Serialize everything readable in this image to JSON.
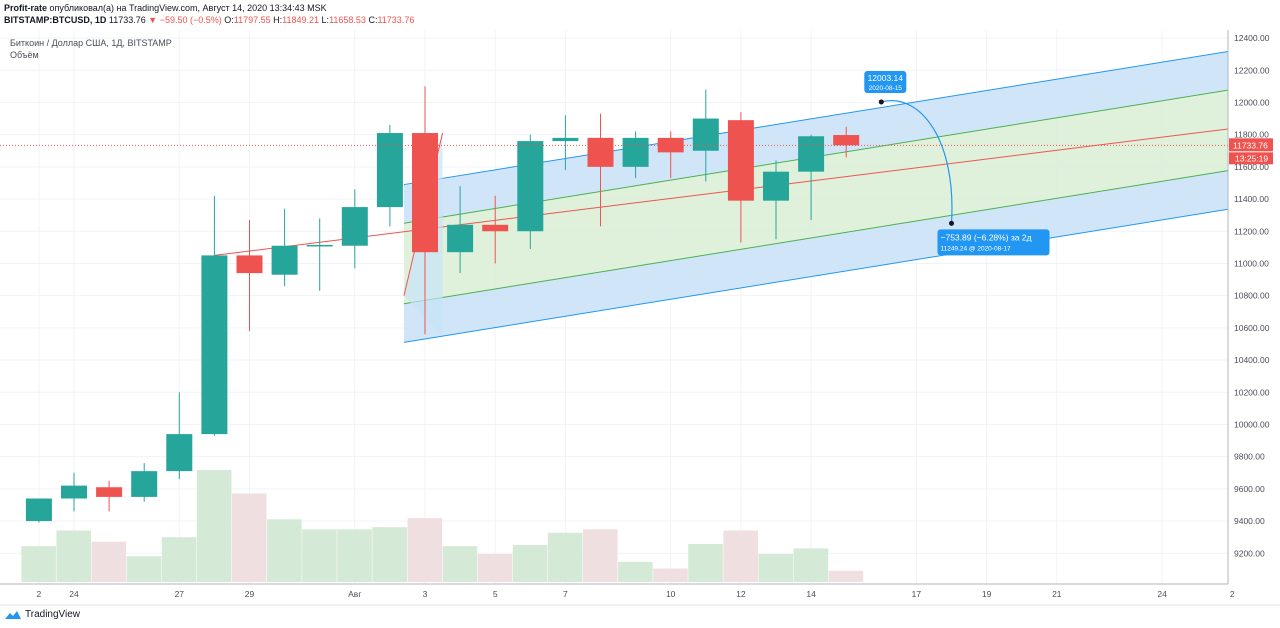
{
  "header": {
    "author": "Profit-rate",
    "published": "опубликовал(а) на TradingView.com, Август 14, 2020 13:34:43 MSK",
    "symbol": "BITSTAMP:BTCUSD, 1D",
    "last": "11733.76",
    "change": "−59.50 (−0.5%)",
    "o_label": "O:",
    "o_val": "11797.55",
    "h_label": "H:",
    "h_val": "11849.21",
    "l_label": "L:",
    "l_val": "11658.53",
    "c_label": "C:",
    "c_val": "11733.76"
  },
  "legend": {
    "series_title": "Биткоин / Доллар США, 1Д, BITSTAMP",
    "volume_title": "Объём"
  },
  "footer": {
    "brand": "TradingView"
  },
  "colors": {
    "up": "#26a69a",
    "down": "#ef5350",
    "vol_up": "#d5ead6",
    "vol_down": "#f0dfe0",
    "channel_outer": "#c8e2f7",
    "channel_inner": "#d9efd5",
    "channel_outer_line": "#2196f3",
    "channel_inner_line": "#4caf50",
    "median_line": "#ef5350",
    "callout": "#2196f3"
  },
  "chart_data": {
    "type": "candlestick",
    "ylim": [
      9000,
      12450
    ],
    "y_ticks": [
      "12400.00",
      "12200.00",
      "12000.00",
      "11800.00",
      "11600.00",
      "11400.00",
      "11200.00",
      "11000.00",
      "10800.00",
      "10600.00",
      "10400.00",
      "10200.00",
      "10000.00",
      "9800.00",
      "9600.00",
      "9400.00",
      "9200.00"
    ],
    "x_ticks": [
      {
        "day": -1,
        "label": "2"
      },
      {
        "day": 0,
        "label": "24"
      },
      {
        "day": 3,
        "label": "27"
      },
      {
        "day": 5,
        "label": "29"
      },
      {
        "day": 8,
        "label": "Авг"
      },
      {
        "day": 10,
        "label": "3"
      },
      {
        "day": 12,
        "label": "5"
      },
      {
        "day": 14,
        "label": "7"
      },
      {
        "day": 17,
        "label": "10"
      },
      {
        "day": 19,
        "label": "12"
      },
      {
        "day": 21,
        "label": "14"
      },
      {
        "day": 24,
        "label": "17"
      },
      {
        "day": 26,
        "label": "19"
      },
      {
        "day": 28,
        "label": "21"
      },
      {
        "day": 31,
        "label": "24"
      },
      {
        "day": 33,
        "label": "2"
      }
    ],
    "candles": [
      {
        "day": -1,
        "o": 9400,
        "h": 9540,
        "l": 9390,
        "c": 9540
      },
      {
        "day": 0,
        "o": 9540,
        "h": 9700,
        "l": 9460,
        "c": 9620
      },
      {
        "day": 1,
        "o": 9610,
        "h": 9650,
        "l": 9460,
        "c": 9550
      },
      {
        "day": 2,
        "o": 9550,
        "h": 9760,
        "l": 9520,
        "c": 9710
      },
      {
        "day": 3,
        "o": 9710,
        "h": 10200,
        "l": 9660,
        "c": 9940
      },
      {
        "day": 4,
        "o": 9940,
        "h": 11420,
        "l": 9930,
        "c": 11050
      },
      {
        "day": 5,
        "o": 11050,
        "h": 11270,
        "l": 10580,
        "c": 10940
      },
      {
        "day": 6,
        "o": 10930,
        "h": 11340,
        "l": 10860,
        "c": 11110
      },
      {
        "day": 7,
        "o": 11110,
        "h": 11280,
        "l": 10830,
        "c": 11115
      },
      {
        "day": 8,
        "o": 11110,
        "h": 11460,
        "l": 10970,
        "c": 11350
      },
      {
        "day": 9,
        "o": 11350,
        "h": 11860,
        "l": 11230,
        "c": 11810
      },
      {
        "day": 10,
        "o": 11810,
        "h": 12100,
        "l": 10560,
        "c": 11070
      },
      {
        "day": 11,
        "o": 11070,
        "h": 11480,
        "l": 10940,
        "c": 11240
      },
      {
        "day": 12,
        "o": 11240,
        "h": 11420,
        "l": 11000,
        "c": 11200
      },
      {
        "day": 13,
        "o": 11200,
        "h": 11800,
        "l": 11090,
        "c": 11760
      },
      {
        "day": 14,
        "o": 11760,
        "h": 11920,
        "l": 11580,
        "c": 11780
      },
      {
        "day": 15,
        "o": 11780,
        "h": 11930,
        "l": 11230,
        "c": 11600
      },
      {
        "day": 16,
        "o": 11600,
        "h": 11820,
        "l": 11530,
        "c": 11780
      },
      {
        "day": 17,
        "o": 11780,
        "h": 11820,
        "l": 11530,
        "c": 11690
      },
      {
        "day": 18,
        "o": 11700,
        "h": 12080,
        "l": 11510,
        "c": 11900
      },
      {
        "day": 19,
        "o": 11890,
        "h": 11940,
        "l": 11130,
        "c": 11390
      },
      {
        "day": 20,
        "o": 11390,
        "h": 11640,
        "l": 11150,
        "c": 11570
      },
      {
        "day": 21,
        "o": 11570,
        "h": 11800,
        "l": 11270,
        "c": 11790
      },
      {
        "day": 22,
        "o": 11797.55,
        "h": 11849.21,
        "l": 11658.53,
        "c": 11733.76
      }
    ],
    "volume_rel": [
      0.32,
      0.46,
      0.36,
      0.23,
      0.4,
      1.0,
      0.79,
      0.56,
      0.47,
      0.47,
      0.49,
      0.57,
      0.32,
      0.25,
      0.33,
      0.44,
      0.47,
      0.18,
      0.12,
      0.34,
      0.46,
      0.25,
      0.3,
      0.1
    ],
    "last_price_label": "11733.76",
    "countdown_label": "13:25:19",
    "channel": {
      "start_day": 9.4,
      "median_start": 11000,
      "median_slope": 35.2,
      "inner_offset": 250,
      "outer_offset": 490,
      "left_fan_top_day": 10.5,
      "left_fan_top": 11810,
      "left_fan_bottom": 10800
    },
    "projection": {
      "from": {
        "day": 23,
        "price": 12003.14
      },
      "to": {
        "day": 25,
        "price": 11249.24
      },
      "top_value": "12003.14",
      "top_date": "2020-08-15",
      "change_text": "−753.89 (−6.28%) за 2д",
      "bottom_text": "11249.24 @ 2020-08-17"
    }
  }
}
